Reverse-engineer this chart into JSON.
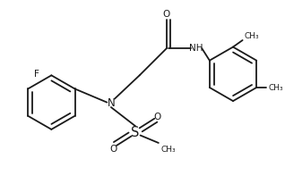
{
  "bg_color": "#ffffff",
  "line_color": "#1a1a1a",
  "line_width": 1.3,
  "font_size": 7.5,
  "figsize": [
    3.18,
    2.07
  ],
  "dpi": 100,
  "xlim": [
    0,
    10
  ],
  "ylim": [
    0,
    6.5
  ]
}
